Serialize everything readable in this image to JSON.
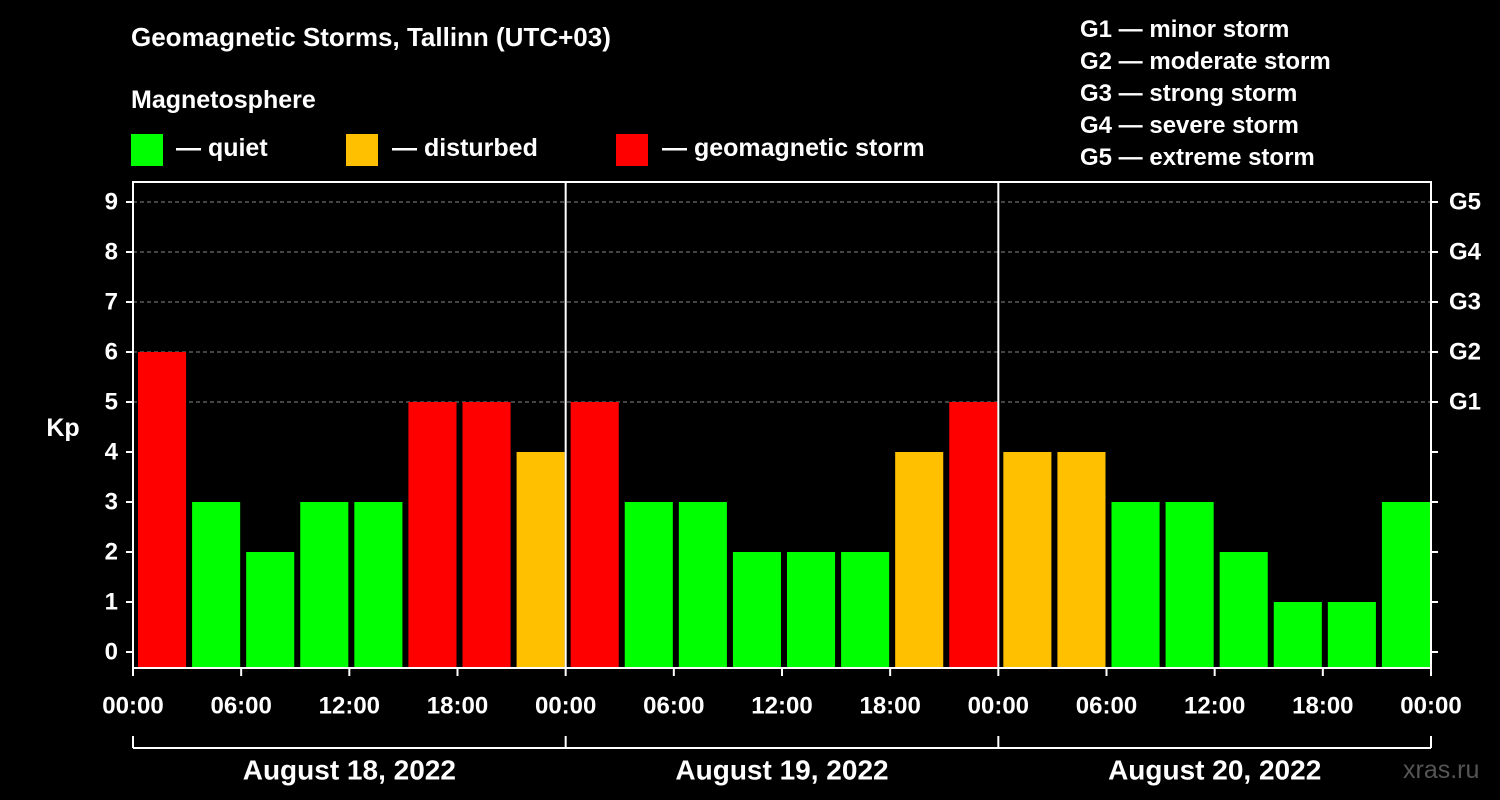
{
  "header": {
    "title": "Geomagnetic Storms, Tallinn (UTC+03)",
    "subtitle": "Magnetosphere"
  },
  "legend": [
    {
      "label": "— quiet",
      "color": "#00ff00"
    },
    {
      "label": "— disturbed",
      "color": "#ffc000"
    },
    {
      "label": "— geomagnetic storm",
      "color": "#ff0000"
    }
  ],
  "storm_scale": [
    "G1 — minor storm",
    "G2 — moderate storm",
    "G3 — strong storm",
    "G4 — severe storm",
    "G5 — extreme storm"
  ],
  "watermark": "xras.ru",
  "chart_data": {
    "type": "bar",
    "ylabel": "Kp",
    "ylim": [
      0,
      9
    ],
    "y_ticks": [
      0,
      1,
      2,
      3,
      4,
      5,
      6,
      7,
      8,
      9
    ],
    "right_axis": [
      {
        "kp": 5,
        "label": "G1"
      },
      {
        "kp": 6,
        "label": "G2"
      },
      {
        "kp": 7,
        "label": "G3"
      },
      {
        "kp": 8,
        "label": "G4"
      },
      {
        "kp": 9,
        "label": "G5"
      }
    ],
    "x_tick_labels": [
      "00:00",
      "06:00",
      "12:00",
      "18:00",
      "00:00",
      "06:00",
      "12:00",
      "18:00",
      "00:00",
      "06:00",
      "12:00",
      "18:00",
      "00:00"
    ],
    "days": [
      "August 18, 2022",
      "August 19, 2022",
      "August 20, 2022"
    ],
    "interval_hours": 3,
    "values": [
      6,
      3,
      2,
      3,
      3,
      5,
      5,
      4,
      5,
      3,
      3,
      2,
      2,
      2,
      4,
      5,
      4,
      4,
      3,
      3,
      2,
      1,
      1,
      3
    ],
    "colors": {
      "quiet": "#00ff00",
      "disturbed": "#ffc000",
      "storm": "#ff0000"
    },
    "color_thresholds": {
      "disturbed_min": 4,
      "storm_min": 5
    },
    "grid": true
  }
}
